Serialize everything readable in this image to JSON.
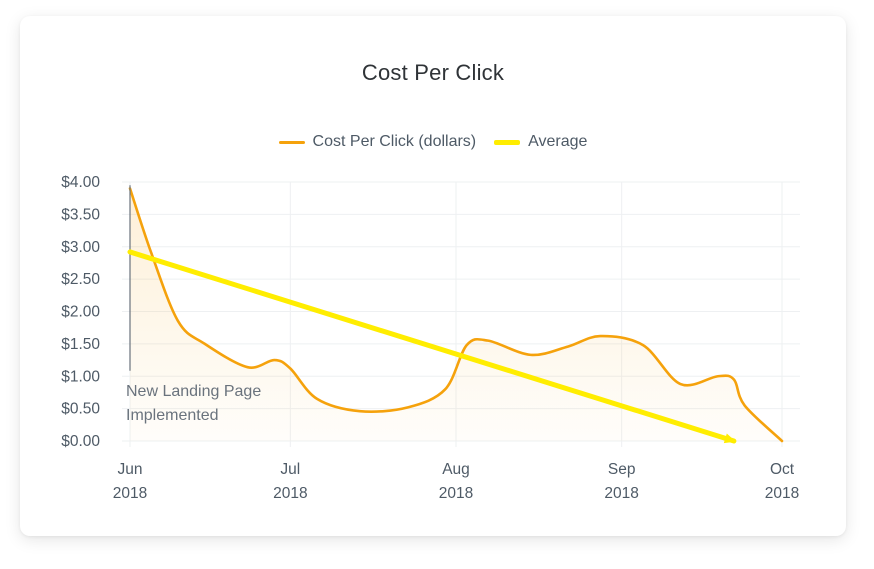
{
  "chart_data": {
    "type": "line",
    "title": "Cost Per Click",
    "xlabel": "",
    "ylabel": "",
    "ylim": [
      0,
      4
    ],
    "y_ticks": [
      "$0.00",
      "$0.50",
      "$1.00",
      "$1.50",
      "$2.00",
      "$2.50",
      "$3.00",
      "$3.50",
      "$4.00"
    ],
    "y_tick_values": [
      0,
      0.5,
      1,
      1.5,
      2,
      2.5,
      3,
      3.5,
      4
    ],
    "x_ticks": [
      {
        "date": "2018-06-01",
        "month": "Jun",
        "year": "2018"
      },
      {
        "date": "2018-07-01",
        "month": "Jul",
        "year": "2018"
      },
      {
        "date": "2018-08-01",
        "month": "Aug",
        "year": "2018"
      },
      {
        "date": "2018-09-01",
        "month": "Sep",
        "year": "2018"
      },
      {
        "date": "2018-10-01",
        "month": "Oct",
        "year": "2018"
      }
    ],
    "xlim": [
      "2018-06-01",
      "2018-10-01"
    ],
    "grid": true,
    "legend_position": "top",
    "series": [
      {
        "name": "Cost Per Click (dollars)",
        "color": "#f5a20c",
        "style": "smooth line with light fill",
        "points": [
          {
            "x": "2018-06-01",
            "y": 3.9
          },
          {
            "x": "2018-06-05",
            "y": 2.9
          },
          {
            "x": "2018-06-10",
            "y": 1.85
          },
          {
            "x": "2018-06-15",
            "y": 1.5
          },
          {
            "x": "2018-06-23",
            "y": 1.14
          },
          {
            "x": "2018-06-28",
            "y": 1.25
          },
          {
            "x": "2018-07-01",
            "y": 1.12
          },
          {
            "x": "2018-07-06",
            "y": 0.65
          },
          {
            "x": "2018-07-14",
            "y": 0.46
          },
          {
            "x": "2018-07-23",
            "y": 0.52
          },
          {
            "x": "2018-07-30",
            "y": 0.8
          },
          {
            "x": "2018-08-03",
            "y": 1.48
          },
          {
            "x": "2018-08-07",
            "y": 1.55
          },
          {
            "x": "2018-08-15",
            "y": 1.33
          },
          {
            "x": "2018-08-22",
            "y": 1.46
          },
          {
            "x": "2018-08-28",
            "y": 1.62
          },
          {
            "x": "2018-09-05",
            "y": 1.48
          },
          {
            "x": "2018-09-12",
            "y": 0.88
          },
          {
            "x": "2018-09-19",
            "y": 1.0
          },
          {
            "x": "2018-09-22",
            "y": 0.95
          },
          {
            "x": "2018-09-24",
            "y": 0.55
          },
          {
            "x": "2018-10-01",
            "y": 0.0
          }
        ]
      },
      {
        "name": "Average",
        "color": "#ffed00",
        "style": "straight trend line",
        "points": [
          {
            "x": "2018-06-01",
            "y": 2.92
          },
          {
            "x": "2018-09-22",
            "y": 0.0
          }
        ]
      }
    ],
    "annotations": [
      {
        "x": "2018-06-01",
        "y_from": 1.1,
        "y_to": 3.95,
        "text_line1": "New Landing Page",
        "text_line2": "Implemented"
      }
    ]
  }
}
